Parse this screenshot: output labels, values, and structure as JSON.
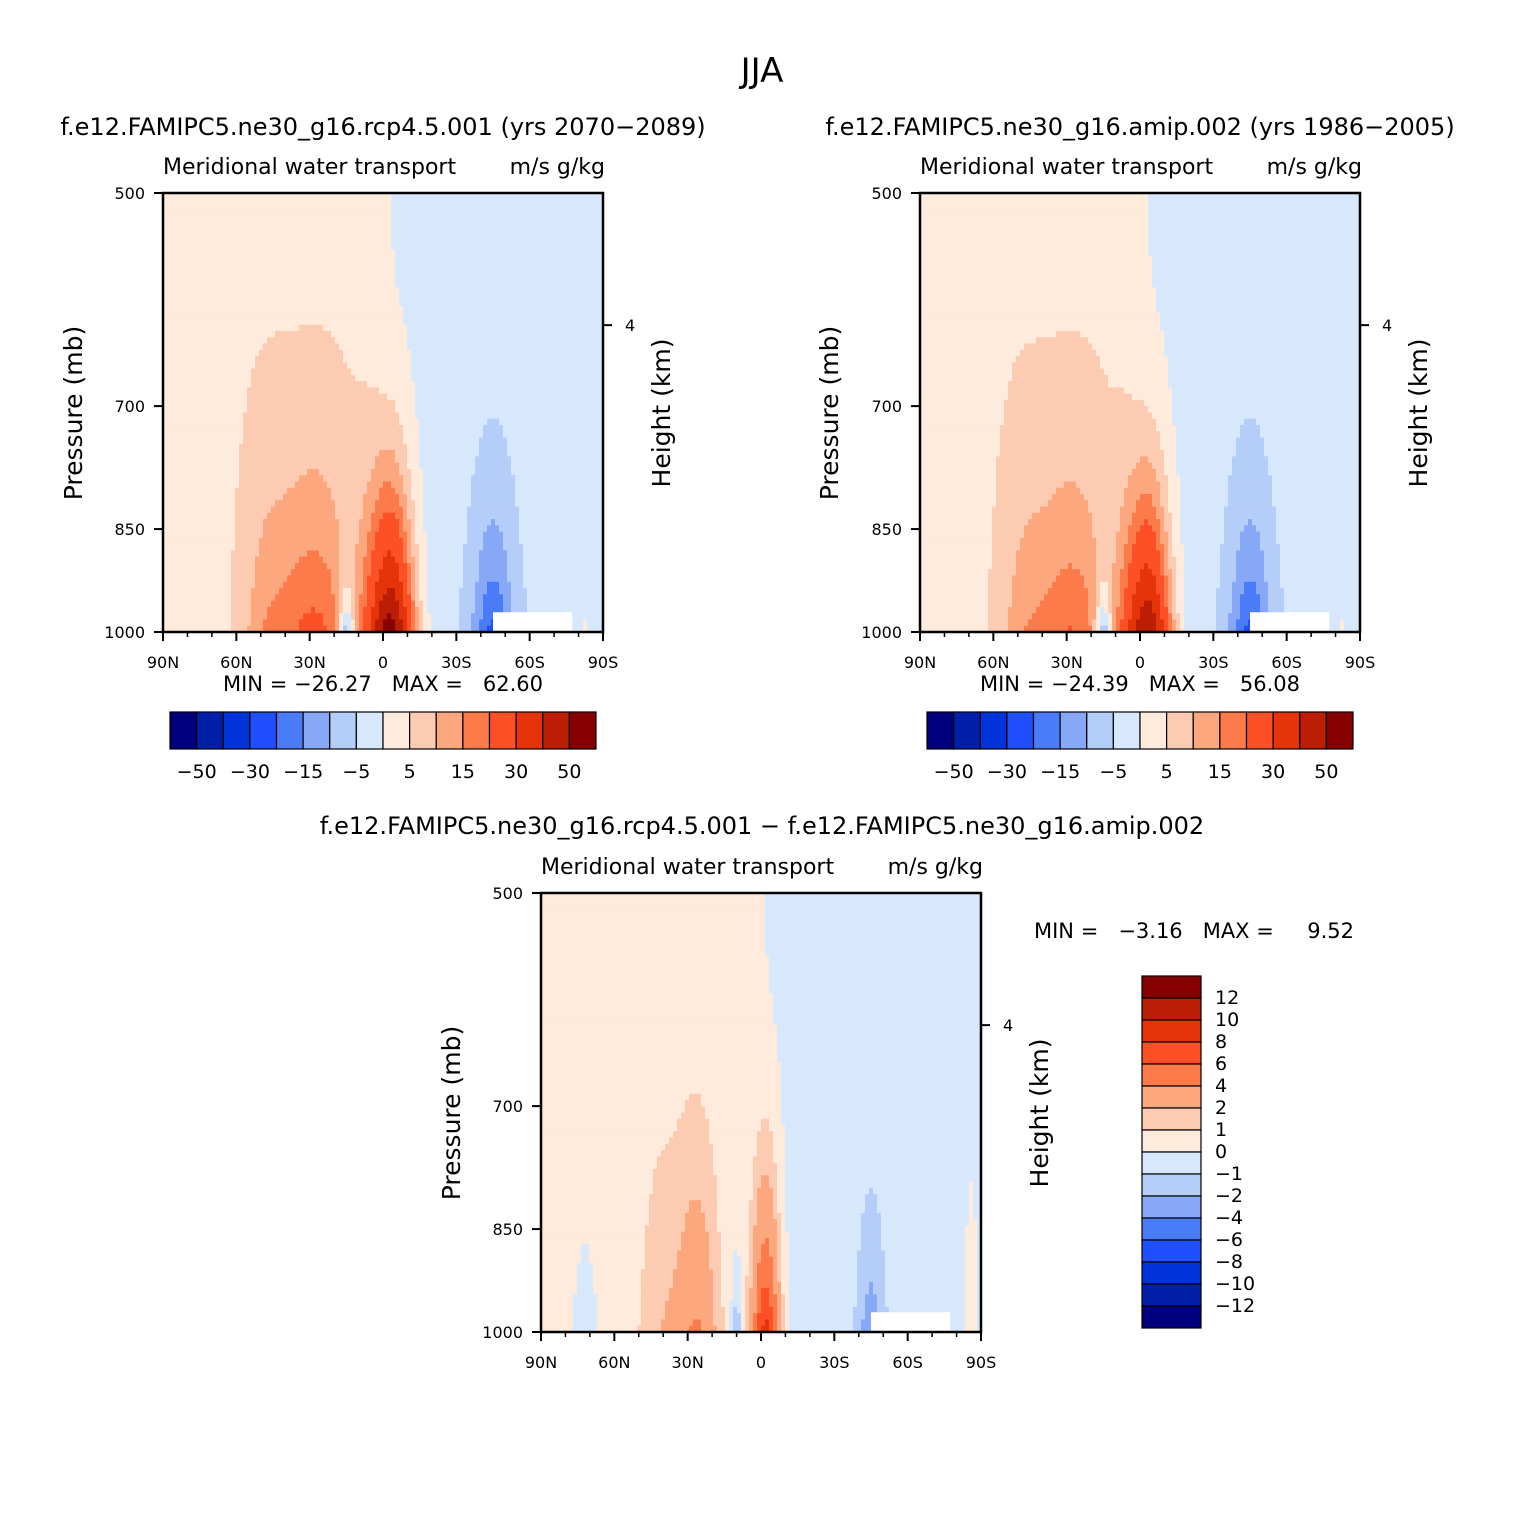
{
  "figure": {
    "title": "JJA",
    "diff_title": "f.e12.FAMIPC5.ne30_g16.rcp4.5.001 − f.e12.FAMIPC5.ne30_g16.amip.002"
  },
  "common": {
    "variable": "Meridional water transport",
    "units": "m/s g/kg",
    "ylabel": "Pressure (mb)",
    "y2label": "Height (km)",
    "yticks": [
      "500",
      "700",
      "850",
      "1000"
    ],
    "y2ticks": [
      "4"
    ],
    "xticks": [
      "90N",
      "60N",
      "30N",
      "0",
      "30S",
      "60S",
      "90S"
    ]
  },
  "palettes": {
    "abs": [
      "#00007f",
      "#0020aa",
      "#0034d8",
      "#1f4fff",
      "#4a7cf9",
      "#87a8f7",
      "#b5cdf9",
      "#d7e8fd",
      "#feebdb",
      "#fdcab2",
      "#fca77e",
      "#fd7a4b",
      "#fd5027",
      "#e5330a",
      "#bb1e05",
      "#870000"
    ],
    "diff": [
      "#00007f",
      "#0020aa",
      "#0034d8",
      "#1f4fff",
      "#4a7cf9",
      "#87a8f7",
      "#b5cdf9",
      "#d7e8fd",
      "#feebdb",
      "#fdcab2",
      "#fca77e",
      "#fd7a4b",
      "#fd5027",
      "#e5330a",
      "#bb1e05",
      "#870000"
    ]
  },
  "colorbar_abs_labels": [
    "−50",
    "−30",
    "−15",
    "−5",
    "5",
    "15",
    "30",
    "50"
  ],
  "colorbar_diff_labels": [
    "12",
    "10",
    "8",
    "6",
    "4",
    "2",
    "1",
    "0",
    "−1",
    "−2",
    "−4",
    "−6",
    "−8",
    "−10",
    "−12"
  ],
  "chart_data": [
    {
      "type": "heatmap",
      "title": "f.e12.FAMIPC5.ne30_g16.rcp4.5.001 (yrs 2070−2089)",
      "stats": "MIN = −26.27   MAX =   62.60",
      "min": -26.27,
      "max": 62.6,
      "xlabel": "",
      "ylabel": "Pressure (mb)",
      "ylim": [
        1000,
        500
      ],
      "xlim": [
        90,
        -90
      ],
      "levels": [
        -50,
        -40,
        -30,
        -20,
        -15,
        -10,
        -5,
        0,
        5,
        10,
        15,
        20,
        30,
        40,
        50
      ],
      "amplitude": 1.0
    },
    {
      "type": "heatmap",
      "title": "f.e12.FAMIPC5.ne30_g16.amip.002 (yrs 1986−2005)",
      "stats": "MIN = −24.39   MAX =   56.08",
      "min": -24.39,
      "max": 56.08,
      "xlabel": "",
      "ylabel": "Pressure (mb)",
      "ylim": [
        1000,
        500
      ],
      "xlim": [
        90,
        -90
      ],
      "levels": [
        -50,
        -40,
        -30,
        -20,
        -15,
        -10,
        -5,
        0,
        5,
        10,
        15,
        20,
        30,
        40,
        50
      ],
      "amplitude": 0.9
    },
    {
      "type": "heatmap",
      "title": "f.e12.FAMIPC5.ne30_g16.rcp4.5.001 − f.e12.FAMIPC5.ne30_g16.amip.002",
      "stats": "MIN =   −3.16   MAX =     9.52",
      "min": -3.16,
      "max": 9.52,
      "xlabel": "",
      "ylabel": "Pressure (mb)",
      "ylim": [
        1000,
        500
      ],
      "xlim": [
        90,
        -90
      ],
      "levels": [
        -12,
        -10,
        -8,
        -6,
        -4,
        -2,
        -1,
        0,
        1,
        2,
        4,
        6,
        8,
        10,
        12
      ]
    }
  ]
}
